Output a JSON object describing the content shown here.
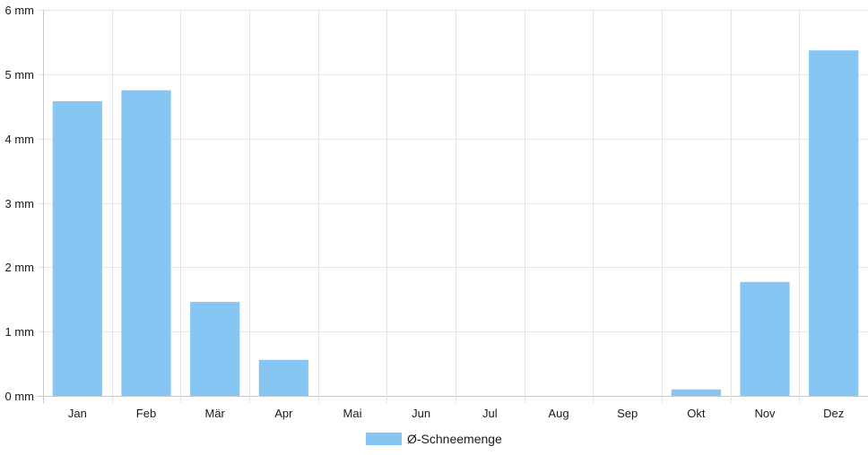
{
  "chart_data": {
    "type": "bar",
    "categories": [
      "Jan",
      "Feb",
      "Mär",
      "Apr",
      "Mai",
      "Jun",
      "Jul",
      "Aug",
      "Sep",
      "Okt",
      "Nov",
      "Dez"
    ],
    "series": [
      {
        "name": "Ø-Schneemenge",
        "values": [
          4.58,
          4.75,
          1.46,
          0.56,
          0,
          0,
          0,
          0,
          0,
          0.1,
          1.77,
          5.37
        ]
      }
    ],
    "ylim": [
      0,
      6
    ],
    "yticks": [
      0,
      1,
      2,
      3,
      4,
      5,
      6
    ],
    "y_tick_suffix": " mm",
    "grid": true,
    "legend_position": "bottom",
    "colors": {
      "bar": "#87c6f3",
      "grid": "#e5e5e5",
      "axis": "#c8c8c8"
    }
  }
}
